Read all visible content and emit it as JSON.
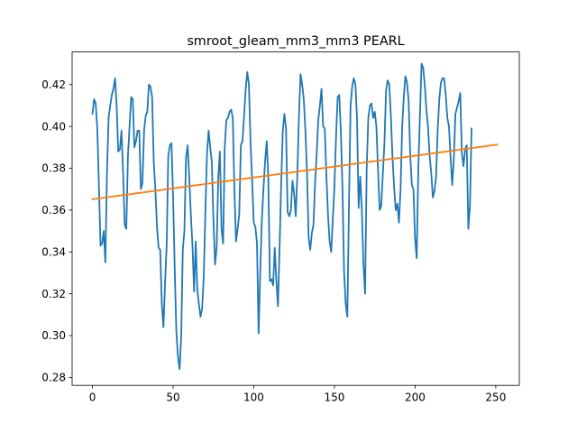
{
  "chart_data": {
    "type": "line",
    "title": "smroot_gleam_mm3_mm3 PEARL",
    "xlabel": "",
    "ylabel": "",
    "xlim": [
      -12.6,
      264.6
    ],
    "ylim": [
      0.2762,
      0.4356
    ],
    "x_ticks": [
      0,
      50,
      100,
      150,
      200,
      250
    ],
    "x_tick_labels": [
      "0",
      "50",
      "100",
      "150",
      "200",
      "250"
    ],
    "y_ticks": [
      0.28,
      0.3,
      0.32,
      0.34,
      0.36,
      0.38,
      0.4,
      0.42
    ],
    "y_tick_labels": [
      "0.28",
      "0.30",
      "0.32",
      "0.34",
      "0.36",
      "0.38",
      "0.40",
      "0.42"
    ],
    "grid": false,
    "series": [
      {
        "color": "#1f77b4",
        "values": [
          0.406,
          0.413,
          0.411,
          0.399,
          0.372,
          0.343,
          0.344,
          0.35,
          0.335,
          0.378,
          0.404,
          0.41,
          0.415,
          0.418,
          0.423,
          0.41,
          0.388,
          0.389,
          0.398,
          0.378,
          0.353,
          0.351,
          0.386,
          0.4,
          0.414,
          0.413,
          0.39,
          0.393,
          0.398,
          0.398,
          0.37,
          0.373,
          0.398,
          0.405,
          0.407,
          0.42,
          0.419,
          0.414,
          0.383,
          0.37,
          0.352,
          0.342,
          0.341,
          0.315,
          0.304,
          0.325,
          0.343,
          0.386,
          0.391,
          0.392,
          0.366,
          0.332,
          0.302,
          0.29,
          0.284,
          0.299,
          0.341,
          0.35,
          0.385,
          0.391,
          0.376,
          0.358,
          0.343,
          0.321,
          0.345,
          0.322,
          0.315,
          0.309,
          0.313,
          0.328,
          0.359,
          0.387,
          0.398,
          0.39,
          0.383,
          0.355,
          0.334,
          0.342,
          0.376,
          0.388,
          0.351,
          0.344,
          0.39,
          0.403,
          0.404,
          0.407,
          0.408,
          0.404,
          0.369,
          0.345,
          0.351,
          0.358,
          0.391,
          0.393,
          0.405,
          0.418,
          0.426,
          0.42,
          0.392,
          0.374,
          0.354,
          0.352,
          0.344,
          0.301,
          0.33,
          0.355,
          0.37,
          0.383,
          0.393,
          0.376,
          0.326,
          0.327,
          0.324,
          0.342,
          0.326,
          0.314,
          0.342,
          0.373,
          0.398,
          0.406,
          0.399,
          0.359,
          0.357,
          0.36,
          0.374,
          0.368,
          0.357,
          0.377,
          0.405,
          0.425,
          0.42,
          0.413,
          0.398,
          0.378,
          0.347,
          0.341,
          0.349,
          0.353,
          0.373,
          0.387,
          0.403,
          0.41,
          0.418,
          0.4,
          0.399,
          0.377,
          0.358,
          0.345,
          0.34,
          0.356,
          0.371,
          0.395,
          0.414,
          0.415,
          0.397,
          0.37,
          0.33,
          0.315,
          0.309,
          0.362,
          0.41,
          0.419,
          0.423,
          0.42,
          0.404,
          0.361,
          0.376,
          0.36,
          0.334,
          0.32,
          0.38,
          0.404,
          0.41,
          0.411,
          0.404,
          0.407,
          0.4,
          0.38,
          0.36,
          0.362,
          0.377,
          0.392,
          0.417,
          0.422,
          0.42,
          0.405,
          0.385,
          0.371,
          0.36,
          0.363,
          0.354,
          0.37,
          0.4,
          0.414,
          0.424,
          0.421,
          0.412,
          0.386,
          0.372,
          0.37,
          0.346,
          0.337,
          0.38,
          0.405,
          0.43,
          0.428,
          0.42,
          0.408,
          0.4,
          0.386,
          0.378,
          0.366,
          0.369,
          0.376,
          0.398,
          0.413,
          0.421,
          0.423,
          0.423,
          0.415,
          0.404,
          0.4,
          0.385,
          0.372,
          0.384,
          0.406,
          0.409,
          0.412,
          0.416,
          0.387,
          0.381,
          0.389,
          0.391,
          0.351,
          0.362,
          0.399
        ]
      },
      {
        "color": "#ff7f0e",
        "x": [
          0,
          251
        ],
        "values": [
          0.3652,
          0.3913
        ]
      }
    ]
  }
}
